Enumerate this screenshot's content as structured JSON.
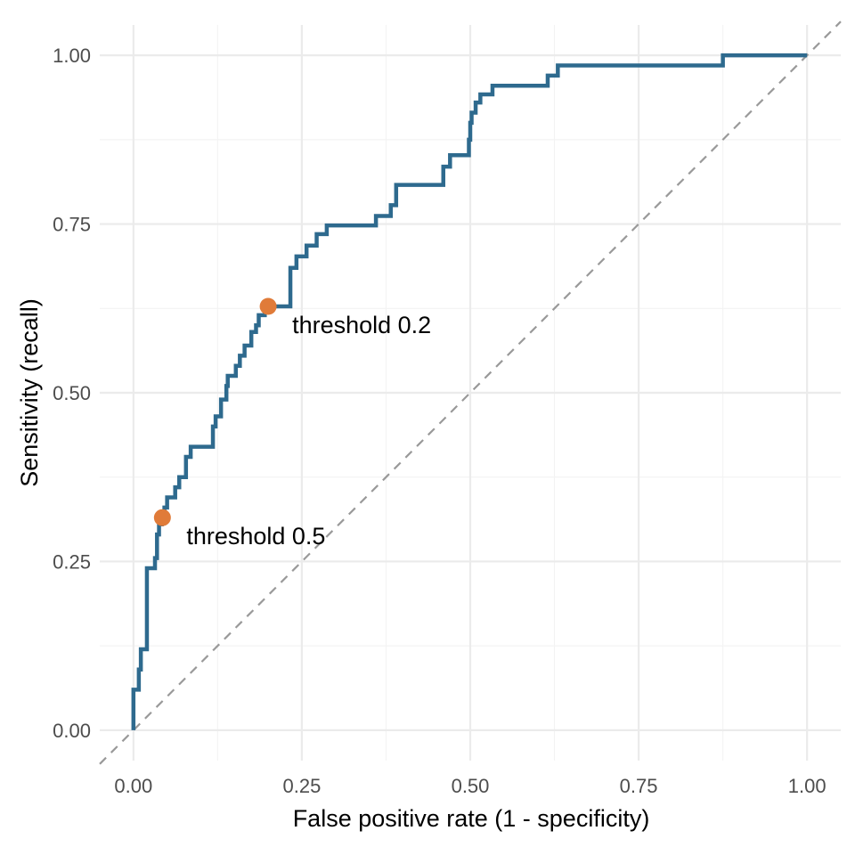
{
  "chart_data": {
    "type": "line",
    "title": "",
    "xlabel": "False positive rate (1 - specificity)",
    "ylabel": "Sensitivity (recall)",
    "xlim": [
      -0.05,
      1.05
    ],
    "ylim": [
      -0.045,
      1.045
    ],
    "x_ticks": [
      0,
      0.25,
      0.5,
      0.75,
      1
    ],
    "y_ticks": [
      0,
      0.25,
      0.5,
      0.75,
      1
    ],
    "x_tick_labels": [
      "0.00",
      "0.25",
      "0.50",
      "0.75",
      "1.00"
    ],
    "y_tick_labels": [
      "0.00",
      "0.25",
      "0.50",
      "0.75",
      "1.00"
    ],
    "grid": true,
    "colors": {
      "curve": "#2e6a8e",
      "threshold_point": "#e07b39",
      "reference_line": "#999999"
    },
    "series": [
      {
        "style": "step",
        "points": [
          [
            0.0,
            0.0
          ],
          [
            0.0,
            0.06
          ],
          [
            0.008,
            0.06
          ],
          [
            0.008,
            0.09
          ],
          [
            0.011,
            0.09
          ],
          [
            0.011,
            0.12
          ],
          [
            0.02,
            0.12
          ],
          [
            0.02,
            0.24
          ],
          [
            0.032,
            0.24
          ],
          [
            0.032,
            0.255
          ],
          [
            0.035,
            0.255
          ],
          [
            0.035,
            0.29
          ],
          [
            0.038,
            0.29
          ],
          [
            0.038,
            0.305
          ],
          [
            0.042,
            0.305
          ],
          [
            0.042,
            0.315
          ],
          [
            0.046,
            0.315
          ],
          [
            0.046,
            0.33
          ],
          [
            0.05,
            0.33
          ],
          [
            0.05,
            0.345
          ],
          [
            0.062,
            0.345
          ],
          [
            0.062,
            0.36
          ],
          [
            0.068,
            0.36
          ],
          [
            0.068,
            0.375
          ],
          [
            0.078,
            0.375
          ],
          [
            0.078,
            0.405
          ],
          [
            0.085,
            0.405
          ],
          [
            0.085,
            0.42
          ],
          [
            0.118,
            0.42
          ],
          [
            0.118,
            0.45
          ],
          [
            0.122,
            0.45
          ],
          [
            0.122,
            0.465
          ],
          [
            0.13,
            0.465
          ],
          [
            0.13,
            0.49
          ],
          [
            0.138,
            0.49
          ],
          [
            0.138,
            0.51
          ],
          [
            0.14,
            0.51
          ],
          [
            0.14,
            0.525
          ],
          [
            0.152,
            0.525
          ],
          [
            0.152,
            0.54
          ],
          [
            0.158,
            0.54
          ],
          [
            0.158,
            0.555
          ],
          [
            0.165,
            0.555
          ],
          [
            0.165,
            0.57
          ],
          [
            0.175,
            0.57
          ],
          [
            0.175,
            0.59
          ],
          [
            0.182,
            0.59
          ],
          [
            0.182,
            0.6
          ],
          [
            0.186,
            0.6
          ],
          [
            0.186,
            0.615
          ],
          [
            0.195,
            0.615
          ],
          [
            0.195,
            0.625
          ],
          [
            0.203,
            0.625
          ],
          [
            0.203,
            0.628
          ],
          [
            0.233,
            0.628
          ],
          [
            0.233,
            0.685
          ],
          [
            0.242,
            0.685
          ],
          [
            0.242,
            0.702
          ],
          [
            0.257,
            0.702
          ],
          [
            0.257,
            0.718
          ],
          [
            0.272,
            0.718
          ],
          [
            0.272,
            0.735
          ],
          [
            0.287,
            0.735
          ],
          [
            0.287,
            0.748
          ],
          [
            0.36,
            0.748
          ],
          [
            0.36,
            0.762
          ],
          [
            0.382,
            0.762
          ],
          [
            0.382,
            0.778
          ],
          [
            0.39,
            0.778
          ],
          [
            0.39,
            0.808
          ],
          [
            0.46,
            0.808
          ],
          [
            0.46,
            0.835
          ],
          [
            0.47,
            0.835
          ],
          [
            0.47,
            0.852
          ],
          [
            0.498,
            0.852
          ],
          [
            0.498,
            0.875
          ],
          [
            0.5,
            0.875
          ],
          [
            0.5,
            0.9
          ],
          [
            0.502,
            0.9
          ],
          [
            0.502,
            0.915
          ],
          [
            0.508,
            0.915
          ],
          [
            0.508,
            0.93
          ],
          [
            0.515,
            0.93
          ],
          [
            0.515,
            0.942
          ],
          [
            0.533,
            0.942
          ],
          [
            0.533,
            0.955
          ],
          [
            0.615,
            0.955
          ],
          [
            0.615,
            0.97
          ],
          [
            0.63,
            0.97
          ],
          [
            0.63,
            0.985
          ],
          [
            0.875,
            0.985
          ],
          [
            0.875,
            1.0
          ],
          [
            1.0,
            1.0
          ]
        ]
      }
    ],
    "reference_line": {
      "style": "dashed",
      "from": [
        -0.05,
        -0.05
      ],
      "to": [
        1.05,
        1.05
      ]
    },
    "annotations": [
      {
        "x": 0.043,
        "y": 0.315,
        "label": "threshold 0.5"
      },
      {
        "x": 0.2,
        "y": 0.628,
        "label": "threshold 0.2"
      }
    ]
  }
}
